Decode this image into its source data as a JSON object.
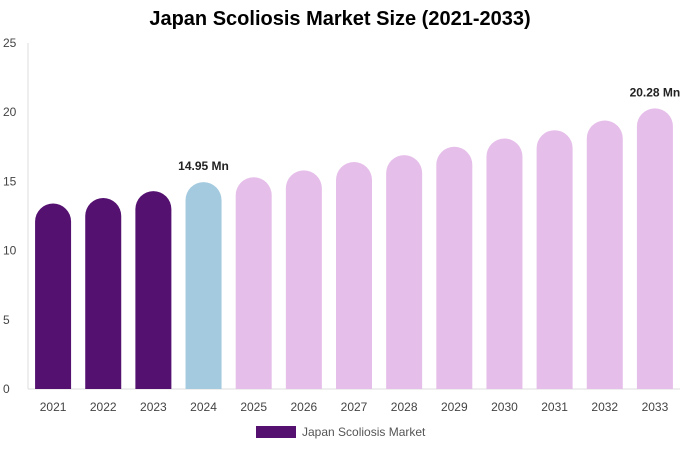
{
  "chart_data": {
    "type": "bar",
    "title": "Japan Scoliosis Market Size (2021-2033)",
    "xlabel": "",
    "ylabel": "",
    "categories": [
      "2021",
      "2022",
      "2023",
      "2024",
      "2025",
      "2026",
      "2027",
      "2028",
      "2029",
      "2030",
      "2031",
      "2032",
      "2033"
    ],
    "series": [
      {
        "name": "Japan Scoliosis Market",
        "values": [
          13.4,
          13.8,
          14.3,
          14.95,
          15.3,
          15.8,
          16.4,
          16.9,
          17.5,
          18.1,
          18.7,
          19.4,
          20.28
        ]
      }
    ],
    "ylim": [
      0,
      25
    ],
    "yticks": [
      0,
      5,
      10,
      15,
      20,
      25
    ],
    "grid": false,
    "legend_position": "bottom",
    "data_labels": [
      {
        "category": "2024",
        "text": "14.95 Mn"
      },
      {
        "category": "2033",
        "text": "20.28 Mn"
      }
    ],
    "colors": {
      "historical": "#541170",
      "current": "#a3cadf",
      "forecast": "#e6beea",
      "axis": "#dddddd"
    },
    "bar_phase": [
      "historical",
      "historical",
      "historical",
      "current",
      "forecast",
      "forecast",
      "forecast",
      "forecast",
      "forecast",
      "forecast",
      "forecast",
      "forecast",
      "forecast"
    ]
  },
  "legend": {
    "label": "Japan Scoliosis Market",
    "color": "#541170"
  }
}
